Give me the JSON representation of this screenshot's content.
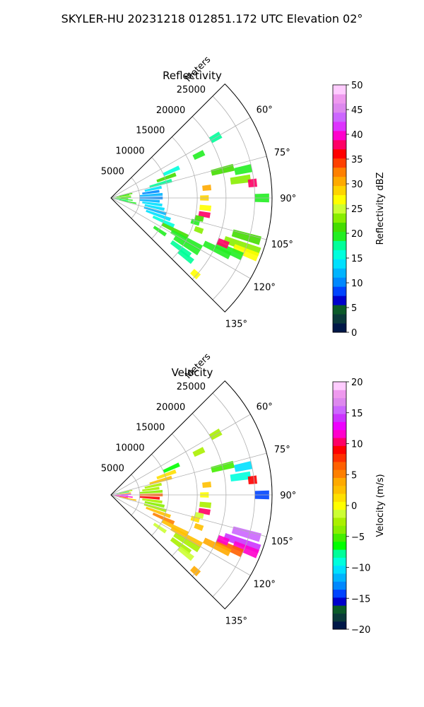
{
  "figure": {
    "title": "SKYLER-HU  20231218  012851.172 UTC Elevation 02°"
  },
  "chart_data": [
    {
      "type": "heatmap",
      "subtype": "polar-sector",
      "title": "Reflectivity",
      "range_label": "Meters",
      "range_ticks": [
        5000,
        10000,
        15000,
        20000,
        25000
      ],
      "range_tick_labels": [
        "5000",
        "10000",
        "15000",
        "20000",
        "25000"
      ],
      "range_max": 28000,
      "azimuth_ticks": [
        60,
        75,
        90,
        105,
        120,
        135
      ],
      "azimuth_tick_labels": [
        "60°",
        "75°",
        "90°",
        "105°",
        "120°",
        "135°"
      ],
      "azimuth_range": [
        45,
        135
      ],
      "grid": true,
      "colorbar": {
        "label": "Reflectivity dBZ",
        "min": 0,
        "max": 50,
        "ticks": [
          0,
          5,
          10,
          15,
          20,
          25,
          30,
          35,
          40,
          45,
          50
        ],
        "tick_labels": [
          "0",
          "5",
          "10",
          "15",
          "20",
          "25",
          "30",
          "35",
          "40",
          "45",
          "50"
        ],
        "colors": [
          "#001848",
          "#0a3a3a",
          "#0b5a2a",
          "#0000cc",
          "#0044ff",
          "#0088ff",
          "#00b4ff",
          "#00e0ff",
          "#00ffdd",
          "#00ff99",
          "#22ee22",
          "#44dd00",
          "#88ee00",
          "#ccff33",
          "#ffff00",
          "#ffd400",
          "#ffaa00",
          "#ff8000",
          "#ff4000",
          "#ff0000",
          "#ff0066",
          "#ff00cc",
          "#dd33ff",
          "#cc66ff",
          "#dd88ee",
          "#ee99ee",
          "#ffccff"
        ]
      },
      "cells": [
        {
          "az": 88,
          "r": [
            500,
            3500
          ],
          "v": 20
        },
        {
          "az": 92,
          "r": [
            500,
            3000
          ],
          "v": 22
        },
        {
          "az": 96,
          "r": [
            500,
            3800
          ],
          "v": 20
        },
        {
          "az": 100,
          "r": [
            800,
            3000
          ],
          "v": 18
        },
        {
          "az": 80,
          "r": [
            800,
            3200
          ],
          "v": 20
        },
        {
          "az": 84,
          "r": [
            1000,
            3500
          ],
          "v": 24
        },
        {
          "az": 102,
          "r": [
            1500,
            4500
          ],
          "v": 19
        },
        {
          "az": 78,
          "r": [
            1500,
            3800
          ],
          "v": 22
        },
        {
          "az": 70,
          "r": [
            8500,
            12000
          ],
          "v": 21
        },
        {
          "az": 74,
          "r": [
            7000,
            11000
          ],
          "v": 18
        },
        {
          "az": 78,
          "r": [
            6000,
            9000
          ],
          "v": 13
        },
        {
          "az": 82,
          "r": [
            5500,
            8500
          ],
          "v": 11
        },
        {
          "az": 86,
          "r": [
            5000,
            9000
          ],
          "v": 12
        },
        {
          "az": 90,
          "r": [
            5000,
            9000
          ],
          "v": 11
        },
        {
          "az": 94,
          "r": [
            5000,
            8500
          ],
          "v": 12
        },
        {
          "az": 98,
          "r": [
            5500,
            9000
          ],
          "v": 13
        },
        {
          "az": 102,
          "r": [
            6000,
            9500
          ],
          "v": 14
        },
        {
          "az": 106,
          "r": [
            6000,
            10000
          ],
          "v": 12
        },
        {
          "az": 110,
          "r": [
            6500,
            11000
          ],
          "v": 13
        },
        {
          "az": 114,
          "r": [
            8000,
            12000
          ],
          "v": 16
        },
        {
          "az": 117,
          "r": [
            10000,
            15000
          ],
          "v": 21
        },
        {
          "az": 119,
          "r": [
            12000,
            18000
          ],
          "v": 20
        },
        {
          "az": 122,
          "r": [
            13000,
            18000
          ],
          "v": 19
        },
        {
          "az": 126,
          "r": [
            13000,
            17000
          ],
          "v": 18
        },
        {
          "az": 128,
          "r": [
            15000,
            18000
          ],
          "v": 17
        },
        {
          "az": 84,
          "r": [
            16000,
            17500
          ],
          "v": 30
        },
        {
          "az": 90,
          "r": [
            15500,
            17000
          ],
          "v": 28
        },
        {
          "az": 96,
          "r": [
            15500,
            17500
          ],
          "v": 26
        },
        {
          "az": 100,
          "r": [
            15500,
            17500
          ],
          "v": 38
        },
        {
          "az": 103,
          "r": [
            15000,
            16500
          ],
          "v": 22
        },
        {
          "az": 106,
          "r": [
            14500,
            16000
          ],
          "v": 20
        },
        {
          "az": 110,
          "r": [
            15500,
            17000
          ],
          "v": 24
        },
        {
          "az": 76,
          "r": [
            18000,
            22000
          ],
          "v": 22
        },
        {
          "az": 78,
          "r": [
            22000,
            25000
          ],
          "v": 20
        },
        {
          "az": 82,
          "r": [
            21000,
            24500
          ],
          "v": 24
        },
        {
          "az": 84,
          "r": [
            24000,
            25500
          ],
          "v": 38
        },
        {
          "az": 90,
          "r": [
            25000,
            27500
          ],
          "v": 20
        },
        {
          "az": 106,
          "r": [
            22000,
            27000
          ],
          "v": 22
        },
        {
          "az": 110,
          "r": [
            21000,
            27500
          ],
          "v": 24
        },
        {
          "az": 112,
          "r": [
            23000,
            27500
          ],
          "v": 26
        },
        {
          "az": 114,
          "r": [
            20000,
            25000
          ],
          "v": 20
        },
        {
          "az": 116,
          "r": [
            18000,
            23000
          ],
          "v": 19
        },
        {
          "az": 112,
          "r": [
            20000,
            22000
          ],
          "v": 38
        },
        {
          "az": 66,
          "r": [
            10000,
            13000
          ],
          "v": 15
        },
        {
          "az": 64,
          "r": [
            16000,
            18000
          ],
          "v": 19
        },
        {
          "az": 60,
          "r": [
            20000,
            22000
          ],
          "v": 18
        },
        {
          "az": 132,
          "r": [
            19000,
            20500
          ],
          "v": 27
        },
        {
          "az": 124,
          "r": [
            9000,
            11500
          ],
          "v": 19
        }
      ]
    },
    {
      "type": "heatmap",
      "subtype": "polar-sector",
      "title": "Velocity",
      "range_label": "Meters",
      "range_ticks": [
        5000,
        10000,
        15000,
        20000,
        25000
      ],
      "range_tick_labels": [
        "5000",
        "10000",
        "15000",
        "20000",
        "25000"
      ],
      "range_max": 28000,
      "azimuth_ticks": [
        60,
        75,
        90,
        105,
        120,
        135
      ],
      "azimuth_tick_labels": [
        "60°",
        "75°",
        "90°",
        "105°",
        "120°",
        "135°"
      ],
      "azimuth_range": [
        45,
        135
      ],
      "grid": true,
      "colorbar": {
        "label": "Velocity (m/s)",
        "min": -20,
        "max": 20,
        "ticks": [
          -20,
          -15,
          -10,
          -5,
          0,
          5,
          10,
          15,
          20
        ],
        "tick_labels": [
          "−20",
          "−15",
          "−10",
          "−5",
          "0",
          "5",
          "10",
          "15",
          "20"
        ],
        "colors": [
          "#001848",
          "#0a3a3a",
          "#0b5a2a",
          "#0000cc",
          "#0044ff",
          "#0088ff",
          "#00b4ff",
          "#00e0ff",
          "#00ffdd",
          "#00ff99",
          "#00ff00",
          "#44ee00",
          "#88ee00",
          "#aaf000",
          "#ccff33",
          "#ffff00",
          "#ffe000",
          "#ffc000",
          "#ffaa00",
          "#ff8000",
          "#ff6000",
          "#ff3000",
          "#ff0000",
          "#ff0066",
          "#ff00cc",
          "#ee00ff",
          "#cc33ff",
          "#cc66ff",
          "#dd88ee",
          "#ee99ee",
          "#ffccff"
        ]
      },
      "cells": [
        {
          "az": 88,
          "r": [
            500,
            3500
          ],
          "v": 14
        },
        {
          "az": 92,
          "r": [
            500,
            3000
          ],
          "v": 16
        },
        {
          "az": 96,
          "r": [
            500,
            3800
          ],
          "v": 11
        },
        {
          "az": 100,
          "r": [
            800,
            3000
          ],
          "v": 10
        },
        {
          "az": 80,
          "r": [
            800,
            3200
          ],
          "v": -10
        },
        {
          "az": 84,
          "r": [
            1000,
            3500
          ],
          "v": 2
        },
        {
          "az": 102,
          "r": [
            1500,
            4500
          ],
          "v": 3
        },
        {
          "az": 78,
          "r": [
            1500,
            3800
          ],
          "v": -2
        },
        {
          "az": 70,
          "r": [
            8500,
            12000
          ],
          "v": 1
        },
        {
          "az": 74,
          "r": [
            7000,
            11000
          ],
          "v": 2
        },
        {
          "az": 78,
          "r": [
            6000,
            9000
          ],
          "v": -3
        },
        {
          "az": 82,
          "r": [
            5500,
            8500
          ],
          "v": -2
        },
        {
          "az": 86,
          "r": [
            5000,
            9000
          ],
          "v": -4
        },
        {
          "az": 90,
          "r": [
            5000,
            9000
          ],
          "v": 6
        },
        {
          "az": 94,
          "r": [
            5000,
            8500
          ],
          "v": 9
        },
        {
          "az": 98,
          "r": [
            5500,
            9000
          ],
          "v": -3
        },
        {
          "az": 102,
          "r": [
            6000,
            9500
          ],
          "v": -4
        },
        {
          "az": 106,
          "r": [
            6000,
            10000
          ],
          "v": -2
        },
        {
          "az": 110,
          "r": [
            6500,
            11000
          ],
          "v": 3
        },
        {
          "az": 114,
          "r": [
            8000,
            12000
          ],
          "v": 5
        },
        {
          "az": 117,
          "r": [
            10000,
            15000
          ],
          "v": 2
        },
        {
          "az": 119,
          "r": [
            12000,
            18000
          ],
          "v": 3
        },
        {
          "az": 122,
          "r": [
            13000,
            18000
          ],
          "v": -3
        },
        {
          "az": 126,
          "r": [
            13000,
            17000
          ],
          "v": -2
        },
        {
          "az": 128,
          "r": [
            15000,
            18000
          ],
          "v": -1
        },
        {
          "az": 84,
          "r": [
            16000,
            17500
          ],
          "v": 2
        },
        {
          "az": 90,
          "r": [
            15500,
            17000
          ],
          "v": 0
        },
        {
          "az": 96,
          "r": [
            15500,
            17500
          ],
          "v": -2
        },
        {
          "az": 100,
          "r": [
            15500,
            17500
          ],
          "v": 10
        },
        {
          "az": 103,
          "r": [
            15000,
            16500
          ],
          "v": -1
        },
        {
          "az": 106,
          "r": [
            14500,
            16000
          ],
          "v": 1
        },
        {
          "az": 110,
          "r": [
            15500,
            17000
          ],
          "v": 3
        },
        {
          "az": 76,
          "r": [
            18000,
            22000
          ],
          "v": -5
        },
        {
          "az": 78,
          "r": [
            22000,
            25000
          ],
          "v": -10
        },
        {
          "az": 82,
          "r": [
            21000,
            24500
          ],
          "v": -9
        },
        {
          "az": 84,
          "r": [
            24000,
            25500
          ],
          "v": 9
        },
        {
          "az": 90,
          "r": [
            25000,
            27500
          ],
          "v": -14
        },
        {
          "az": 106,
          "r": [
            22000,
            27000
          ],
          "v": 15
        },
        {
          "az": 110,
          "r": [
            21000,
            27500
          ],
          "v": 14
        },
        {
          "az": 112,
          "r": [
            23000,
            27500
          ],
          "v": 11
        },
        {
          "az": 114,
          "r": [
            20000,
            25000
          ],
          "v": 6
        },
        {
          "az": 116,
          "r": [
            18000,
            23000
          ],
          "v": 4
        },
        {
          "az": 112,
          "r": [
            20000,
            22000
          ],
          "v": 12
        },
        {
          "az": 66,
          "r": [
            10000,
            13000
          ],
          "v": -6
        },
        {
          "az": 64,
          "r": [
            16000,
            18000
          ],
          "v": -3
        },
        {
          "az": 60,
          "r": [
            20000,
            22000
          ],
          "v": -2
        },
        {
          "az": 132,
          "r": [
            19000,
            20500
          ],
          "v": 4
        },
        {
          "az": 124,
          "r": [
            9000,
            11500
          ],
          "v": -1
        }
      ]
    }
  ]
}
